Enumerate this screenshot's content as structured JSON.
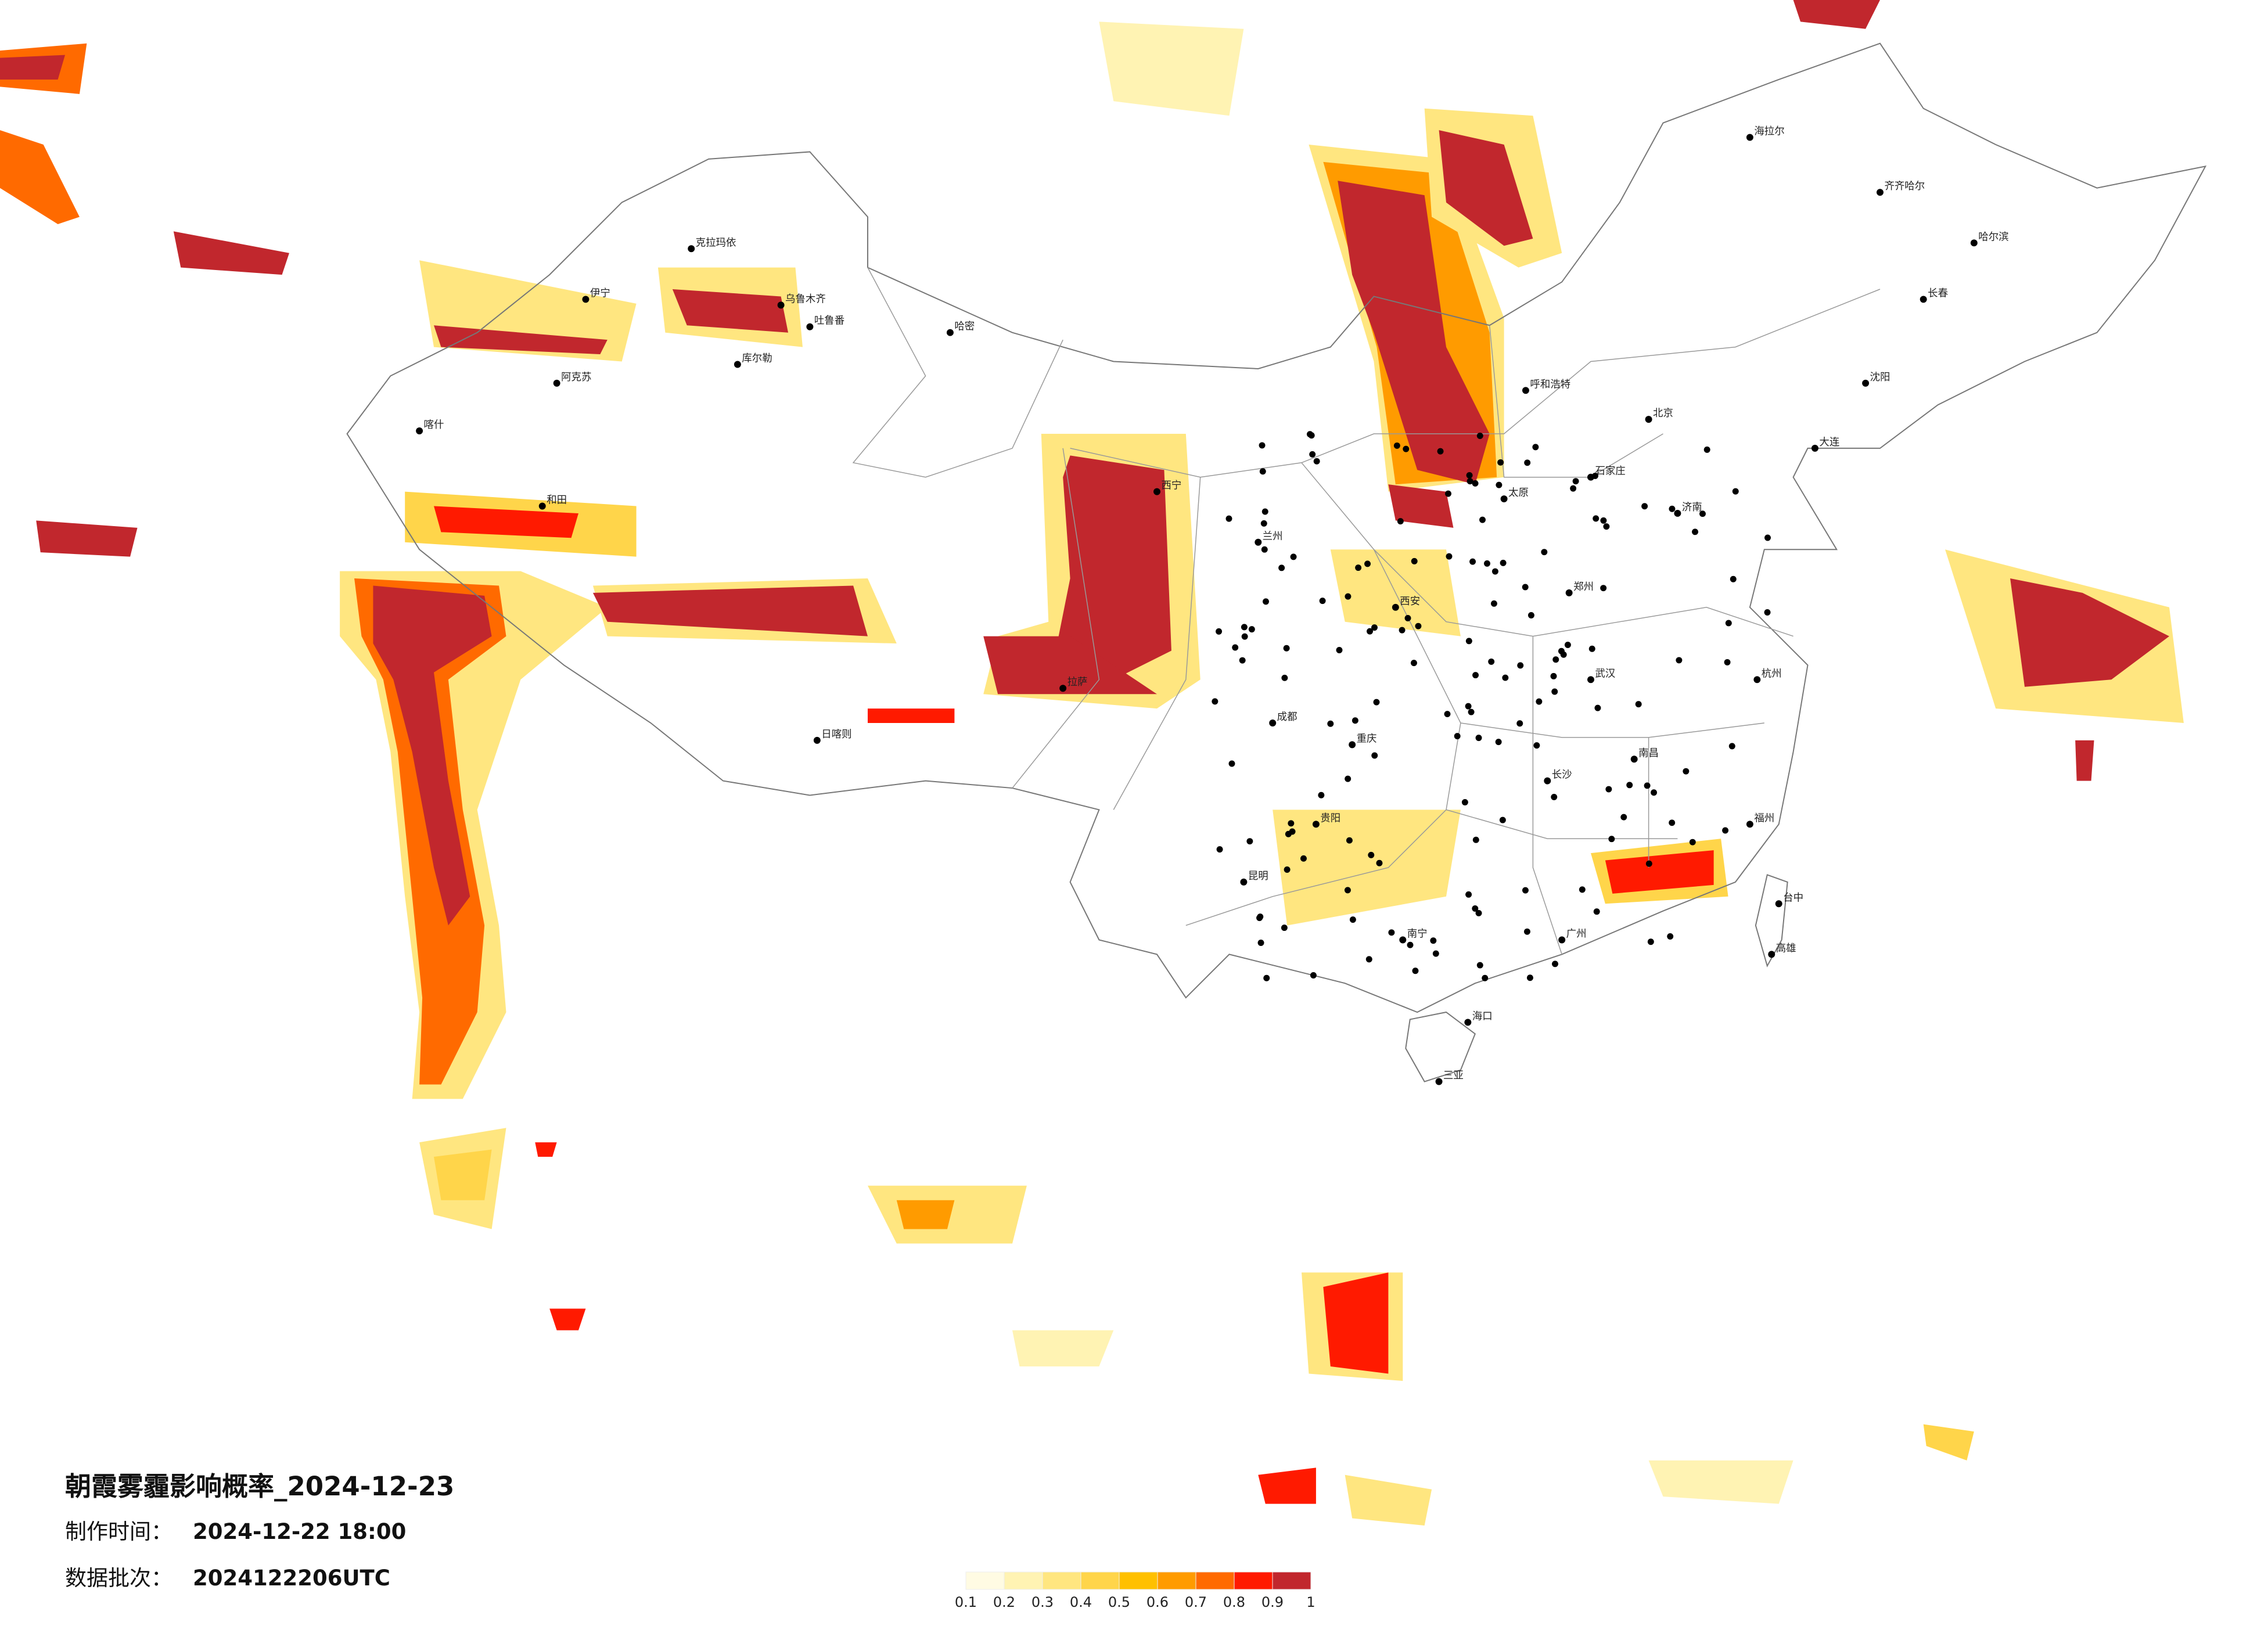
{
  "title": "朝霞雾霾影响概率_2024-12-23",
  "info": [
    {
      "label": "制作时间：",
      "value": "2024-12-22 18:00"
    },
    {
      "label": "数据批次：",
      "value": "2024122206UTC"
    }
  ],
  "legend": {
    "colors": [
      "#fffbe3",
      "#fff3b3",
      "#ffe680",
      "#ffd54a",
      "#ffc000",
      "#ff9b00",
      "#ff6a00",
      "#ff1a00",
      "#c1272d"
    ],
    "ticks": [
      0.1,
      0.2,
      0.3,
      0.4,
      0.5,
      0.6,
      0.7,
      0.8,
      0.9,
      1
    ]
  },
  "cities": [
    "克拉玛依",
    "乌鲁木齐",
    "伊宁",
    "阿克苏",
    "喀什",
    "吐鲁番",
    "哈密",
    "库尔勒",
    "和田",
    "拉萨",
    "日喀则",
    "西宁",
    "兰州",
    "呼和浩特",
    "海拉尔",
    "齐齐哈尔",
    "哈尔滨",
    "长春",
    "沈阳",
    "大连",
    "北京",
    "石家庄",
    "太原",
    "济南",
    "郑州",
    "西安",
    "成都",
    "重庆",
    "武汉",
    "长沙",
    "南昌",
    "杭州",
    "福州",
    "广州",
    "南宁",
    "贵阳",
    "昆明",
    "海口",
    "三亚",
    "台中",
    "高雄"
  ]
}
